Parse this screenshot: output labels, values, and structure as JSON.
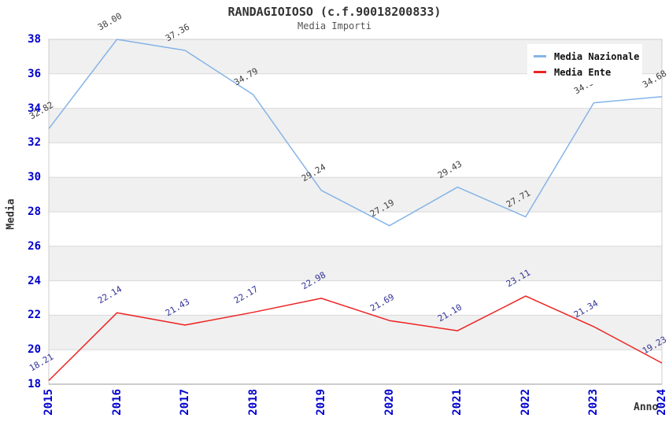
{
  "chart_data": {
    "type": "line",
    "title": "RANDAGIOIOSO (c.f.90018200833)",
    "subtitle": "Media Importi",
    "xlabel": "Anno",
    "ylabel": "Media",
    "categories": [
      "2015",
      "2016",
      "2017",
      "2018",
      "2019",
      "2020",
      "2021",
      "2022",
      "2023",
      "2024"
    ],
    "series": [
      {
        "name": "Media Nazionale",
        "color": "#85b4e6",
        "label_color": "#404040",
        "values": [
          32.82,
          38.0,
          37.36,
          34.79,
          29.24,
          27.19,
          29.43,
          27.71,
          34.32,
          34.68
        ]
      },
      {
        "name": "Media Ente",
        "color": "#ee2222",
        "label_color": "#333399",
        "values": [
          18.21,
          22.14,
          21.43,
          22.17,
          22.98,
          21.69,
          21.1,
          23.11,
          21.34,
          19.23
        ]
      }
    ],
    "ylim": [
      18,
      38
    ],
    "ytick_step": 2,
    "grid": true,
    "band_fill": true,
    "band_color": "#f0f0f0",
    "grid_color": "#d9d9d9",
    "border_color": "#cccccc",
    "axis_line_color": "#999999",
    "tick_label_color": "#0000cc",
    "legend_position": "top-right",
    "value_label_decimals": 2,
    "value_label_rotation_deg": -30
  }
}
